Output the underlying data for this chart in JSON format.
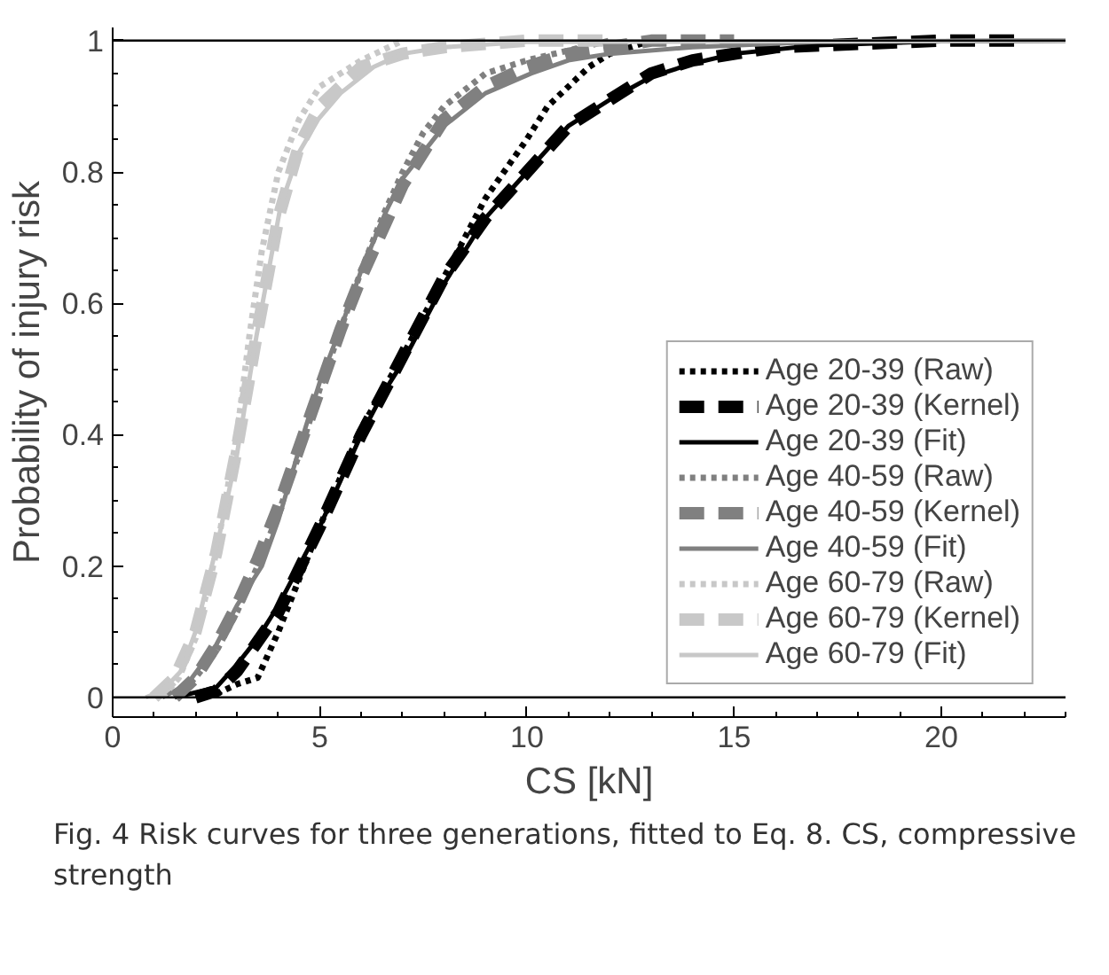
{
  "chart_data": {
    "type": "line",
    "xlabel": "CS [kN]",
    "ylabel": "Probability of injury risk",
    "xlim": [
      0,
      23
    ],
    "ylim": [
      -0.03,
      1.02
    ],
    "xticks": [
      0,
      5,
      10,
      15,
      20
    ],
    "yticks": [
      0,
      0.2,
      0.4,
      0.6,
      0.8,
      1
    ],
    "grid": false,
    "legend": "bottom right",
    "marker": "none",
    "ref_lines": [
      {
        "axis": "y",
        "value": 0,
        "color": "#000000"
      },
      {
        "axis": "y",
        "value": 1,
        "color": "#000000"
      }
    ],
    "annotations": [
      "Fig. 4  Risk curves for three generations, fitted to Eq. 8. CS, compressive strength"
    ],
    "series": [
      {
        "name": "Age 20-39 (Raw)",
        "color": "#000000",
        "line_style": "dotted",
        "x": [
          2.5,
          3,
          3.5,
          4,
          4.5,
          5,
          6,
          7,
          8,
          9,
          10,
          10.5,
          11,
          11.5,
          12,
          12.5,
          13
        ],
        "values": [
          0.005,
          0.02,
          0.03,
          0.1,
          0.18,
          0.26,
          0.41,
          0.52,
          0.64,
          0.76,
          0.85,
          0.9,
          0.93,
          0.96,
          0.98,
          0.99,
          1
        ]
      },
      {
        "name": "Age 20-39 (Kernel)",
        "color": "#000000",
        "line_style": "dashed",
        "x": [
          2,
          2.5,
          3,
          4,
          5,
          6,
          7,
          8,
          9,
          10,
          11,
          12,
          13,
          14,
          16,
          18,
          20,
          22
        ],
        "values": [
          0,
          0.01,
          0.04,
          0.13,
          0.26,
          0.4,
          0.52,
          0.64,
          0.73,
          0.8,
          0.87,
          0.91,
          0.95,
          0.97,
          0.99,
          0.995,
          1,
          1
        ]
      },
      {
        "name": "Age 20-39 (Fit)",
        "color": "#000000",
        "line_style": "solid",
        "x": [
          1.5,
          2.5,
          3,
          3.5,
          4,
          4.5,
          5,
          5.5,
          6,
          6.5,
          7,
          7.5,
          8,
          9,
          10,
          11,
          12,
          13,
          14,
          15,
          17,
          20,
          23
        ],
        "values": [
          0,
          0.015,
          0.05,
          0.09,
          0.14,
          0.2,
          0.26,
          0.33,
          0.4,
          0.46,
          0.51,
          0.57,
          0.63,
          0.73,
          0.8,
          0.87,
          0.91,
          0.945,
          0.965,
          0.98,
          0.993,
          0.999,
          1
        ]
      },
      {
        "name": "Age 40-59 (Raw)",
        "color": "#808080",
        "line_style": "dotted",
        "x": [
          1.5,
          2,
          2.5,
          3,
          3.5,
          4,
          4.5,
          5,
          5.5,
          6,
          6.5,
          7,
          7.5,
          8,
          9,
          10,
          11,
          12
        ],
        "values": [
          0,
          0.03,
          0.07,
          0.13,
          0.2,
          0.28,
          0.37,
          0.47,
          0.56,
          0.65,
          0.73,
          0.8,
          0.86,
          0.9,
          0.95,
          0.97,
          0.985,
          1
        ]
      },
      {
        "name": "Age 40-59 (Kernel)",
        "color": "#808080",
        "line_style": "dashed",
        "x": [
          1.5,
          2,
          2.5,
          3,
          3.5,
          4,
          4.5,
          5,
          5.5,
          6,
          7,
          8,
          9,
          10,
          11,
          12,
          13,
          15
        ],
        "values": [
          0,
          0.03,
          0.08,
          0.14,
          0.21,
          0.29,
          0.38,
          0.47,
          0.56,
          0.64,
          0.78,
          0.88,
          0.93,
          0.96,
          0.98,
          0.99,
          1,
          1
        ]
      },
      {
        "name": "Age 40-59 (Fit)",
        "color": "#808080",
        "line_style": "solid",
        "x": [
          1.2,
          1.8,
          2.5,
          3,
          3.6,
          4,
          4.65,
          5,
          5.55,
          6,
          6.6,
          7,
          8,
          9,
          10.1,
          11,
          12,
          14,
          17,
          23
        ],
        "values": [
          0,
          0.02,
          0.08,
          0.14,
          0.2,
          0.27,
          0.41,
          0.48,
          0.57,
          0.65,
          0.74,
          0.79,
          0.87,
          0.92,
          0.95,
          0.97,
          0.98,
          0.99,
          0.998,
          1
        ]
      },
      {
        "name": "Age 60-79 (Raw)",
        "color": "#c8c8c8",
        "line_style": "dotted",
        "x": [
          1.2,
          1.6,
          2,
          2.5,
          3,
          3.3,
          3.6,
          4,
          4.5,
          5,
          6,
          7
        ],
        "values": [
          0,
          0.03,
          0.09,
          0.22,
          0.4,
          0.55,
          0.68,
          0.8,
          0.88,
          0.93,
          0.97,
          1
        ]
      },
      {
        "name": "Age 60-79 (Kernel)",
        "color": "#c8c8c8",
        "line_style": "dashed",
        "x": [
          1,
          1.5,
          2,
          2.5,
          3,
          3.5,
          4,
          4.5,
          5,
          6,
          7,
          8,
          10,
          12
        ],
        "values": [
          0,
          0.03,
          0.1,
          0.22,
          0.38,
          0.56,
          0.73,
          0.84,
          0.9,
          0.96,
          0.98,
          0.99,
          1,
          1
        ]
      },
      {
        "name": "Age 60-79 (Fit)",
        "color": "#c8c8c8",
        "line_style": "solid",
        "x": [
          0.8,
          1.2,
          1.65,
          2,
          2.55,
          3,
          3.47,
          4.06,
          4.5,
          4.96,
          5.5,
          6.3,
          7,
          8,
          10,
          23
        ],
        "values": [
          0,
          0.01,
          0.04,
          0.1,
          0.24,
          0.37,
          0.55,
          0.75,
          0.83,
          0.88,
          0.92,
          0.96,
          0.98,
          0.99,
          0.998,
          1
        ]
      }
    ]
  }
}
